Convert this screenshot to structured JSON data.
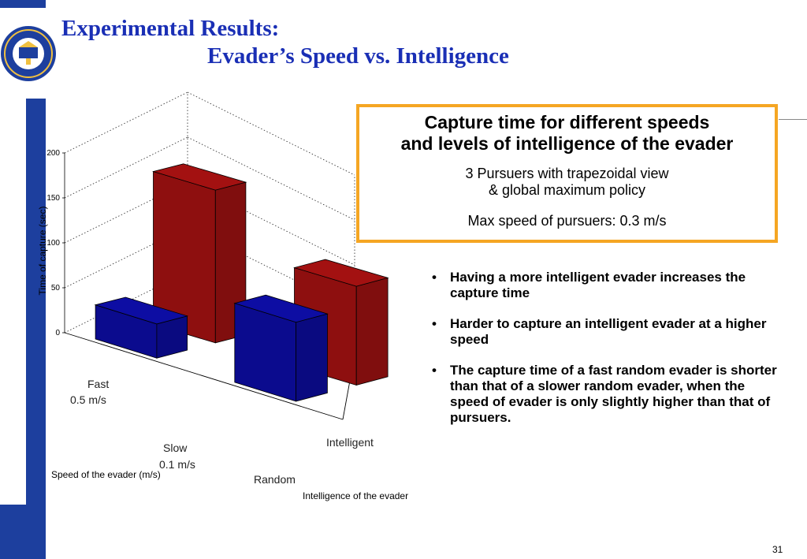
{
  "title": {
    "line1": "Experimental Results:",
    "line2": "Evader’s Speed vs. Intelligence"
  },
  "info_box": {
    "heading_line1": "Capture time for different speeds",
    "heading_line2": "and levels of intelligence of the evader",
    "sub_line1": "3 Pursuers with trapezoidal view",
    "sub_line2": "& global maximum policy",
    "speed": "Max speed of pursuers: 0.3 m/s"
  },
  "bullets": [
    "Having a more intelligent evader increases the capture time",
    "Harder to capture an intelligent evader at a higher speed",
    "The capture time of a fast random evader is shorter than that of a slower random evader, when the speed of evader is only slightly higher than that of pursuers."
  ],
  "page_number": "31",
  "colors": {
    "title": "#1a2fb5",
    "side_bar": "#1d3f9e",
    "box_border": "#f5a623",
    "random_bar": "#0b0b8e",
    "intelligent_bar": "#8e0f0f"
  },
  "chart_data": {
    "type": "bar",
    "subtype": "3d-grouped",
    "title": "",
    "zlabel": "Time of capture (sec)",
    "xlabel": "Speed of the evader (m/s)",
    "ylabel": "Intelligence of the evader",
    "speed_categories": [
      {
        "line1": "Fast",
        "line2": "0.5 m/s"
      },
      {
        "line1": "Slow",
        "line2": "0.1 m/s"
      }
    ],
    "intelligence_categories": [
      "Random",
      "Intelligent"
    ],
    "zlim": [
      0,
      200
    ],
    "zticks": [
      "0",
      "50",
      "100",
      "150",
      "200"
    ],
    "grid": true,
    "series": [
      {
        "name": "Random",
        "values": [
          38,
          88
        ],
        "color": "#0b0b8e"
      },
      {
        "name": "Intelligent",
        "values": [
          170,
          110
        ],
        "color": "#8e0f0f"
      }
    ]
  }
}
